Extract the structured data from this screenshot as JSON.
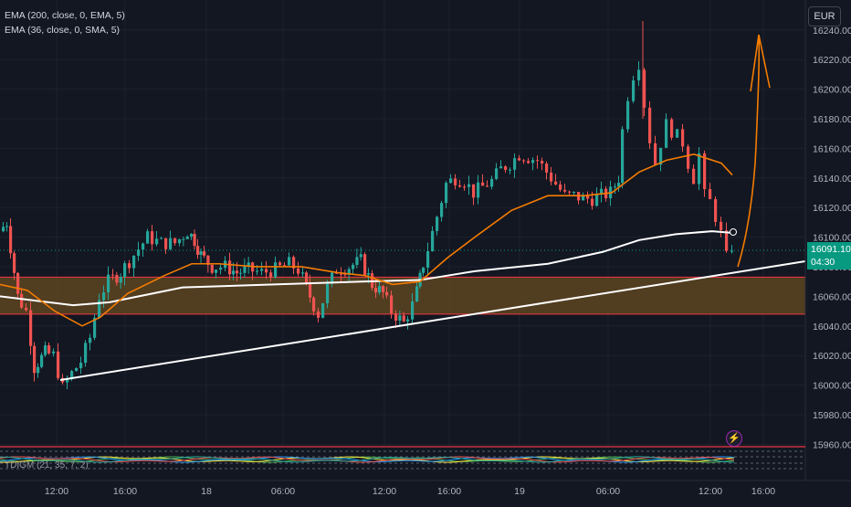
{
  "legend": {
    "ema200": "EMA (200, close, 0, EMA, 5)",
    "ema36": "EMA (36, close, 0, SMA, 5)"
  },
  "currency": "EUR",
  "last_price": {
    "value": "16091.10",
    "countdown": "04:30"
  },
  "oscillator": {
    "label": "TDIGM (21, 35, 7, 2)"
  },
  "bolt_icon": "lightning-icon",
  "price_axis": {
    "ticks": [
      "16240.00",
      "16220.00",
      "16200.00",
      "16180.00",
      "16160.00",
      "16140.00",
      "16120.00",
      "16100.00",
      "16080.00",
      "16060.00",
      "16040.00",
      "16020.00",
      "16000.00",
      "15980.00",
      "15960.00"
    ]
  },
  "time_axis": {
    "ticks": [
      "12:00",
      "16:00",
      "18",
      "06:00",
      "12:00",
      "16:00",
      "19",
      "06:00",
      "12:00",
      "16:00"
    ]
  },
  "colors": {
    "background": "#131722",
    "bull": "#26a69a",
    "bear": "#ef5350",
    "ema200": "#ffffff",
    "ema36": "#f57c00",
    "zone_fill": "#5d4420",
    "zone_border": "#f23645",
    "last_price_tag": "#089981",
    "arrow": "#f57c00"
  },
  "chart_data": {
    "type": "candlestick",
    "y_range": [
      15950,
      16260
    ],
    "zone": {
      "top": 16073,
      "bottom": 16048
    },
    "trendline": {
      "from": [
        "17 10:30",
        15996
      ],
      "to": [
        "19 17:50",
        16082
      ]
    },
    "ema200_line": "white",
    "ema36_line": "orange"
  }
}
